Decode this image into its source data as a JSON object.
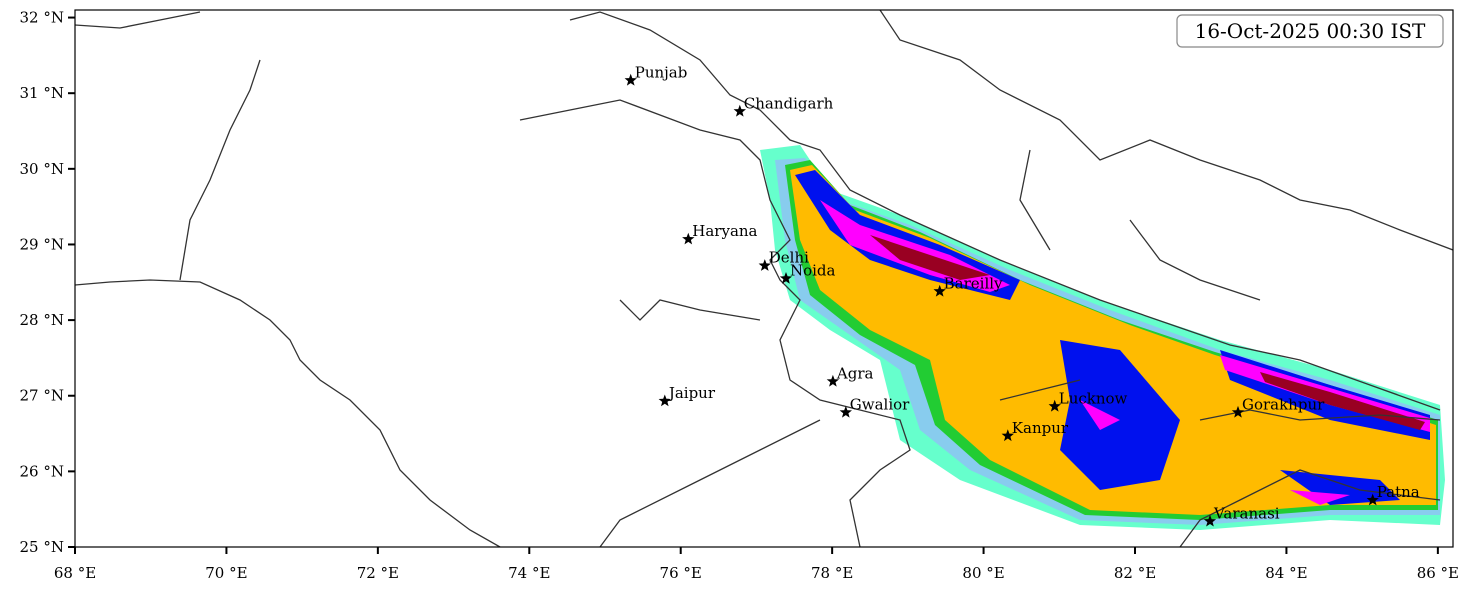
{
  "map": {
    "title": "16-Oct-2025 00:30 IST",
    "xlim": [
      68,
      86.2
    ],
    "ylim": [
      25,
      32.1
    ],
    "xticks": [
      {
        "value": 68,
        "label": "68 °E"
      },
      {
        "value": 70,
        "label": "70 °E"
      },
      {
        "value": 72,
        "label": "72 °E"
      },
      {
        "value": 74,
        "label": "74 °E"
      },
      {
        "value": 76,
        "label": "76 °E"
      },
      {
        "value": 78,
        "label": "78 °E"
      },
      {
        "value": 80,
        "label": "80 °E"
      },
      {
        "value": 82,
        "label": "82 °E"
      },
      {
        "value": 84,
        "label": "84 °E"
      },
      {
        "value": 86,
        "label": "86 °E"
      }
    ],
    "yticks": [
      {
        "value": 25,
        "label": "25 °N"
      },
      {
        "value": 26,
        "label": "26 °N"
      },
      {
        "value": 27,
        "label": "27 °N"
      },
      {
        "value": 28,
        "label": "28 °N"
      },
      {
        "value": 29,
        "label": "29 °N"
      },
      {
        "value": 30,
        "label": "30 °N"
      },
      {
        "value": 31,
        "label": "31 °N"
      },
      {
        "value": 32,
        "label": "32 °N"
      }
    ],
    "cities": [
      {
        "name": "Punjab",
        "lon": 75.34,
        "lat": 31.17
      },
      {
        "name": "Chandigarh",
        "lon": 76.78,
        "lat": 30.76
      },
      {
        "name": "Haryana",
        "lon": 76.1,
        "lat": 29.07
      },
      {
        "name": "Delhi",
        "lon": 77.11,
        "lat": 28.72
      },
      {
        "name": "Noida",
        "lon": 77.39,
        "lat": 28.55
      },
      {
        "name": "Bareilly",
        "lon": 79.42,
        "lat": 28.38
      },
      {
        "name": "Jaipur",
        "lon": 75.79,
        "lat": 26.93
      },
      {
        "name": "Agra",
        "lon": 78.01,
        "lat": 27.19
      },
      {
        "name": "Gwalior",
        "lon": 78.18,
        "lat": 26.78
      },
      {
        "name": "Lucknow",
        "lon": 80.94,
        "lat": 26.86
      },
      {
        "name": "Kanpur",
        "lon": 80.32,
        "lat": 26.47
      },
      {
        "name": "Gorakhpur",
        "lon": 83.36,
        "lat": 26.78
      },
      {
        "name": "Varanasi",
        "lon": 82.99,
        "lat": 25.34
      },
      {
        "name": "Patna",
        "lon": 85.14,
        "lat": 25.62
      }
    ]
  }
}
